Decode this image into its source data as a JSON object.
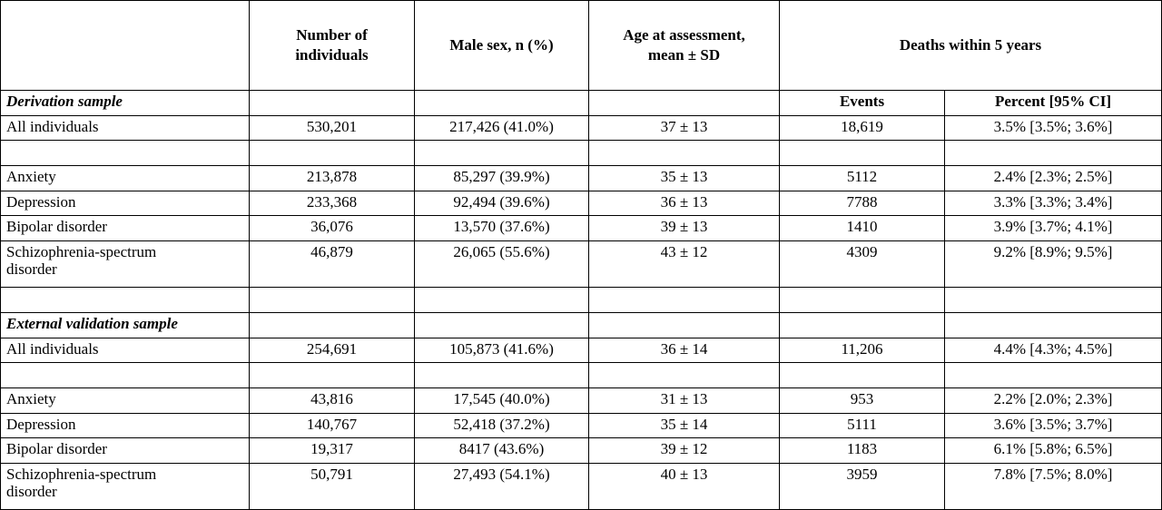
{
  "header": {
    "columns": [
      "Number of individuals",
      "Male sex, n (%)",
      "Age at assessment, mean ± SD",
      "Deaths within 5 years"
    ],
    "subcolumns": [
      "Events",
      "Percent [95% CI]"
    ]
  },
  "sections": [
    {
      "title": "Derivation sample",
      "rows": [
        [
          "All individuals",
          "530,201",
          "217,426 (41.0%)",
          "37 ± 13",
          "18,619",
          "3.5% [3.5%; 3.6%]"
        ],
        [
          "Anxiety",
          "213,878",
          "85,297 (39.9%)",
          "35 ± 13",
          "5112",
          "2.4% [2.3%; 2.5%]"
        ],
        [
          "Depression",
          "233,368",
          "92,494 (39.6%)",
          "36 ± 13",
          "7788",
          "3.3% [3.3%; 3.4%]"
        ],
        [
          "Bipolar disorder",
          "36,076",
          "13,570 (37.6%)",
          "39 ± 13",
          "1410",
          "3.9% [3.7%; 4.1%]"
        ],
        [
          "Schizophrenia-spectrum disorder",
          "46,879",
          "26,065 (55.6%)",
          "43 ± 12",
          "4309",
          "9.2% [8.9%; 9.5%]"
        ]
      ]
    },
    {
      "title": "External validation sample",
      "rows": [
        [
          "All individuals",
          "254,691",
          "105,873 (41.6%)",
          "36 ± 14",
          "11,206",
          "4.4% [4.3%; 4.5%]"
        ],
        [
          "Anxiety",
          "43,816",
          "17,545 (40.0%)",
          "31 ± 13",
          "953",
          "2.2% [2.0%; 2.3%]"
        ],
        [
          "Depression",
          "140,767",
          "52,418 (37.2%)",
          "35 ± 14",
          "5111",
          "3.6% [3.5%; 3.7%]"
        ],
        [
          "Bipolar disorder",
          "19,317",
          "8417 (43.6%)",
          "39 ± 12",
          "1183",
          "6.1% [5.8%; 6.5%]"
        ],
        [
          "Schizophrenia-spectrum disorder",
          "50,791",
          "27,493 (54.1%)",
          "40 ± 13",
          "3959",
          "7.8% [7.5%; 8.0%]"
        ]
      ]
    }
  ]
}
